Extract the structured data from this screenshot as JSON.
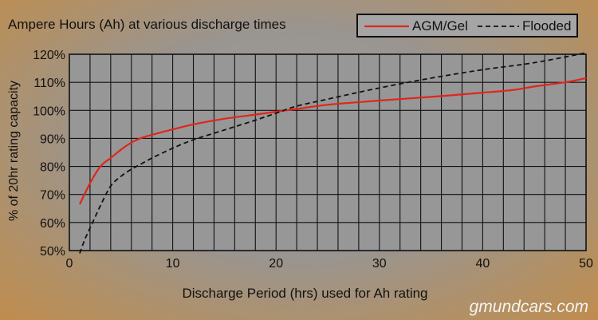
{
  "chart_data": {
    "type": "line",
    "title": "Ampere Hours (Ah) at various discharge times",
    "xlabel": "Discharge Period (hrs) used for Ah rating",
    "ylabel": "% of 20hr rating capacity",
    "xlim": [
      0,
      50
    ],
    "ylim": [
      50,
      120
    ],
    "x_ticks": [
      0,
      10,
      20,
      30,
      40,
      50
    ],
    "x_tick_labels": [
      "0",
      "10",
      "20",
      "30",
      "40",
      "50"
    ],
    "y_ticks": [
      50,
      60,
      70,
      80,
      90,
      100,
      110,
      120
    ],
    "y_tick_labels": [
      "50%",
      "60%",
      "70%",
      "80%",
      "90%",
      "100%",
      "110%",
      "120%"
    ],
    "grid": true,
    "legend_position": "top-right",
    "series": [
      {
        "name": "AGM/Gel",
        "color": "#e0261c",
        "style": "solid",
        "x": [
          1,
          2,
          3,
          4,
          5,
          6,
          7,
          8,
          10,
          12,
          15,
          18,
          20,
          22,
          25,
          30,
          35,
          40,
          43,
          45,
          48,
          50
        ],
        "y": [
          66.5,
          74,
          80,
          83,
          86,
          88.5,
          90.2,
          91.3,
          93.2,
          95,
          97,
          98.5,
          99.5,
          100.5,
          102,
          103.5,
          104.8,
          106.3,
          107.3,
          108.5,
          110,
          111.5
        ]
      },
      {
        "name": "Flooded",
        "color": "#111111",
        "style": "dashed",
        "x": [
          1,
          1.5,
          2,
          2.5,
          3,
          4,
          5,
          6,
          7,
          8,
          10,
          12,
          15,
          18,
          20,
          22,
          25,
          30,
          35,
          40,
          45,
          50
        ],
        "y": [
          49,
          54,
          58,
          62,
          66,
          73,
          76.5,
          79,
          81,
          83,
          86.5,
          89.5,
          93,
          96.5,
          99,
          101.5,
          104,
          108,
          111.5,
          114.5,
          117,
          120.5
        ]
      }
    ]
  },
  "watermark": "gmundcars.com"
}
